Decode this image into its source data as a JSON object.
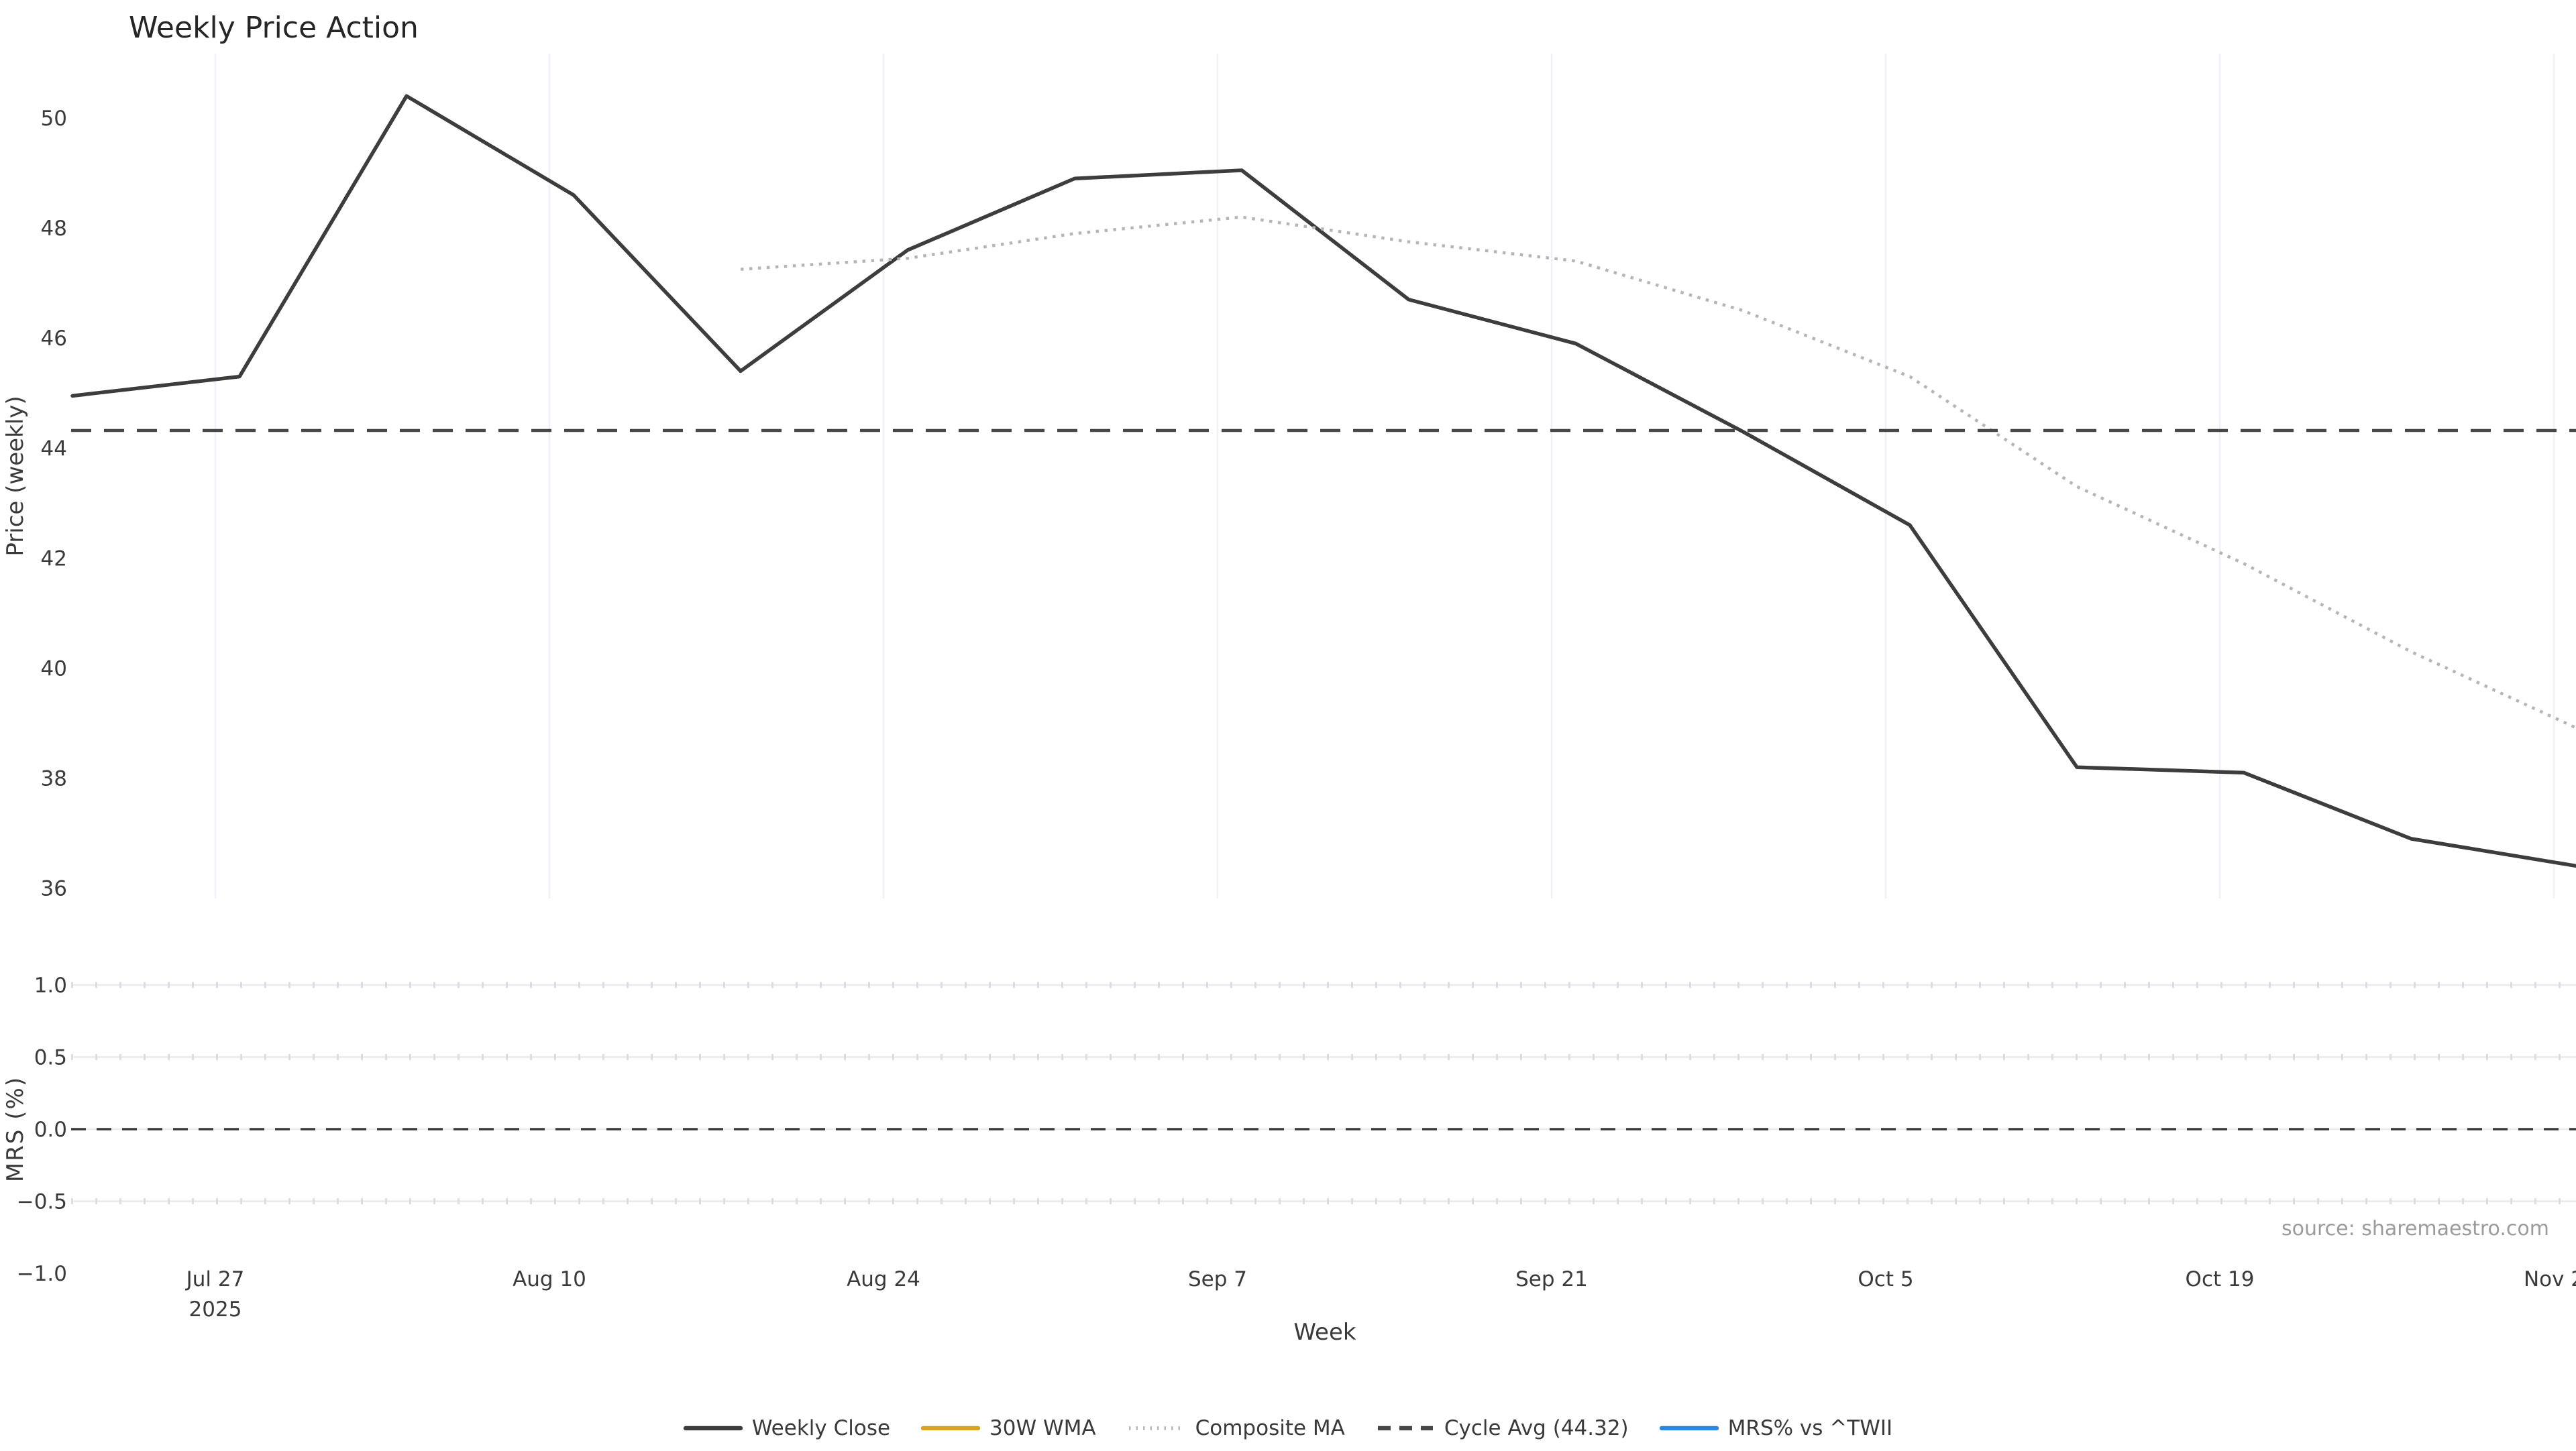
{
  "title": "Weekly Price Action",
  "source": "source: sharemaestro.com",
  "xlabel": "Week",
  "price_axis": {
    "label": "Price (weekly)",
    "ticks": [
      "50",
      "48",
      "46",
      "44",
      "42",
      "40",
      "38",
      "36"
    ],
    "tick_values": [
      50,
      48,
      46,
      44,
      42,
      40,
      38,
      36
    ]
  },
  "mrs_axis": {
    "label": "MRS (%)",
    "ticks": [
      "1.0",
      "0.5",
      "0.0",
      "−0.5",
      "−1.0"
    ],
    "tick_values": [
      1.0,
      0.5,
      0.0,
      -0.5,
      -1.0
    ]
  },
  "x_ticks": [
    {
      "line1": "Jul 27",
      "line2": "2025"
    },
    {
      "line1": "Aug 10",
      "line2": ""
    },
    {
      "line1": "Aug 24",
      "line2": ""
    },
    {
      "line1": "Sep 7",
      "line2": ""
    },
    {
      "line1": "Sep 21",
      "line2": ""
    },
    {
      "line1": "Oct 5",
      "line2": ""
    },
    {
      "line1": "Oct 19",
      "line2": ""
    },
    {
      "line1": "Nov 2",
      "line2": ""
    }
  ],
  "legend": {
    "items": [
      {
        "label": "Weekly Close",
        "color": "#3d3d3d",
        "dash": "solid"
      },
      {
        "label": "30W WMA",
        "color": "#d9a521",
        "dash": "solid"
      },
      {
        "label": "Composite MA",
        "color": "#b5b5b5",
        "dash": "dotted"
      },
      {
        "label": "Cycle Avg (44.32)",
        "color": "#474747",
        "dash": "dashed"
      },
      {
        "label": "MRS% vs ^TWII",
        "color": "#2e86de",
        "dash": "solid"
      }
    ]
  },
  "colors": {
    "weekly_close": "#3d3d3d",
    "wma_30w": "#d9a521",
    "composite_ma": "#b5b5b5",
    "cycle_avg": "#474747",
    "mrs_line": "#2e86de",
    "grid_vertical": "#eef1f7",
    "grid_horizontal": "#e9e9ef",
    "grid_tick_overlay": "#dcdce4",
    "zero_line": "#3a3a3a",
    "text": "#3a3a3a",
    "title": "#262626",
    "source": "#9b9b9b"
  },
  "chart_data": [
    {
      "type": "line",
      "panel": "price",
      "title": "Weekly Price Action",
      "xlabel": "Week",
      "ylabel": "Price (weekly)",
      "ylim": [
        35.8,
        51.1
      ],
      "grid": "vertical-only",
      "x": [
        "2025-07-21",
        "2025-07-28",
        "2025-08-04",
        "2025-08-11",
        "2025-08-18",
        "2025-08-25",
        "2025-09-01",
        "2025-09-08",
        "2025-09-15",
        "2025-09-22",
        "2025-09-29",
        "2025-10-06",
        "2025-10-13",
        "2025-10-20",
        "2025-10-27",
        "2025-11-03"
      ],
      "x_tick_labels": [
        "Jul 27 2025",
        "Aug 10",
        "Aug 24",
        "Sep 7",
        "Sep 21",
        "Oct 5",
        "Oct 19",
        "Nov 2"
      ],
      "series": [
        {
          "name": "Weekly Close",
          "style": "solid",
          "color": "#3d3d3d",
          "values": [
            44.95,
            45.3,
            50.4,
            48.6,
            45.4,
            47.6,
            48.9,
            49.05,
            46.7,
            45.9,
            44.3,
            42.6,
            38.2,
            38.1,
            36.9,
            36.4
          ]
        },
        {
          "name": "30W WMA",
          "style": "solid",
          "color": "#d9a521",
          "values": [
            null,
            null,
            null,
            null,
            null,
            null,
            null,
            null,
            null,
            null,
            null,
            null,
            null,
            null,
            null,
            null
          ]
        },
        {
          "name": "Composite MA",
          "style": "dotted",
          "color": "#b5b5b5",
          "values": [
            null,
            null,
            null,
            null,
            47.25,
            47.45,
            47.9,
            48.2,
            47.75,
            47.4,
            46.5,
            45.3,
            43.3,
            41.9,
            40.3,
            38.9
          ]
        },
        {
          "name": "Cycle Avg",
          "style": "dashed",
          "color": "#474747",
          "constant": 44.32
        }
      ]
    },
    {
      "type": "line",
      "panel": "mrs",
      "ylabel": "MRS (%)",
      "ylim": [
        -1.15,
        1.15
      ],
      "yticks": [
        1.0,
        0.5,
        0.0,
        -0.5,
        -1.0
      ],
      "grid": "horizontal-only",
      "series": [
        {
          "name": "MRS% vs ^TWII",
          "style": "solid",
          "color": "#2e86de",
          "values": [
            null,
            null,
            null,
            null,
            null,
            null,
            null,
            null,
            null,
            null,
            null,
            null,
            null,
            null,
            null,
            null
          ]
        },
        {
          "name": "Zero line",
          "style": "dashed",
          "color": "#3a3a3a",
          "constant": 0.0
        }
      ]
    }
  ]
}
